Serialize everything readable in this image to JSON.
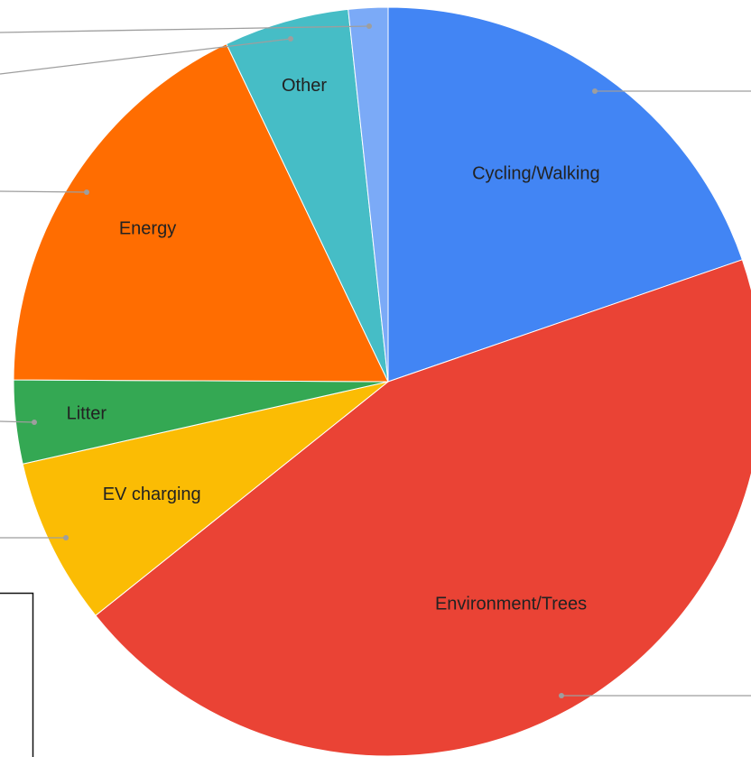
{
  "chart_data": {
    "type": "pie",
    "categories": [
      "Cycling/Walking",
      "Environment/Trees",
      "EV charging",
      "Litter",
      "Energy",
      "Other",
      null
    ],
    "values": [
      19.7,
      44.5,
      7.2,
      3.6,
      17.8,
      5.4,
      1.7
    ],
    "colors": [
      "#4285f4",
      "#ea4335",
      "#fbbc04",
      "#34a853",
      "#ff6d01",
      "#46bdc6",
      "#7baaf7"
    ],
    "start_angle": 0,
    "direction": "clockwise"
  }
}
